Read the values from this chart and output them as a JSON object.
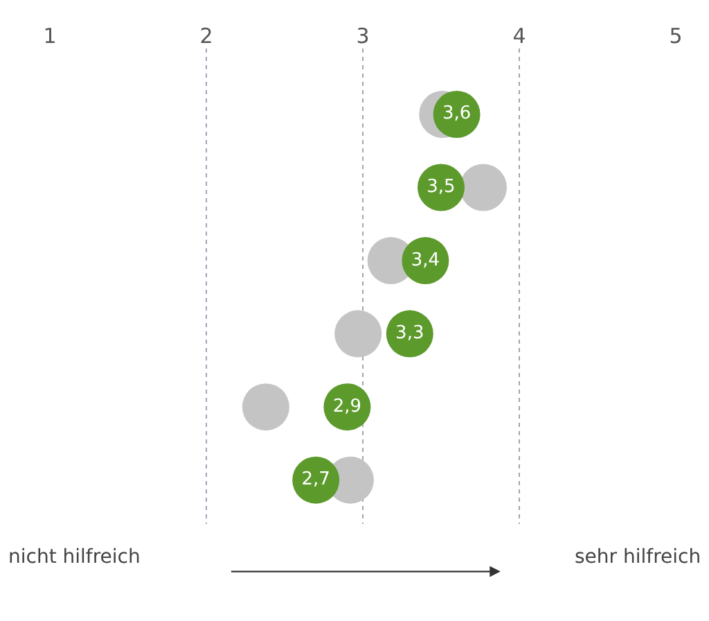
{
  "chart_data": {
    "type": "scatter",
    "categories": [
      null,
      null,
      null,
      null,
      null,
      null
    ],
    "series": [
      {
        "color": "#c4c4c4",
        "values": [
          3.51,
          3.77,
          3.18,
          2.97,
          2.38,
          2.92
        ]
      },
      {
        "color": "#5c9a2c",
        "values": [
          3.6,
          3.5,
          3.4,
          3.3,
          2.9,
          2.7
        ],
        "value_labels": [
          "3,6",
          "3,5",
          "3,4",
          "3,3",
          "2,9",
          "2,7"
        ]
      }
    ],
    "xlim": [
      1,
      5
    ],
    "xticks": [
      1,
      2,
      3,
      4,
      5
    ],
    "grid": "x",
    "marker": "circle",
    "orientation": "horizontal",
    "annotations": [
      "nicht hilfreich",
      "sehr hilfreich"
    ]
  }
}
